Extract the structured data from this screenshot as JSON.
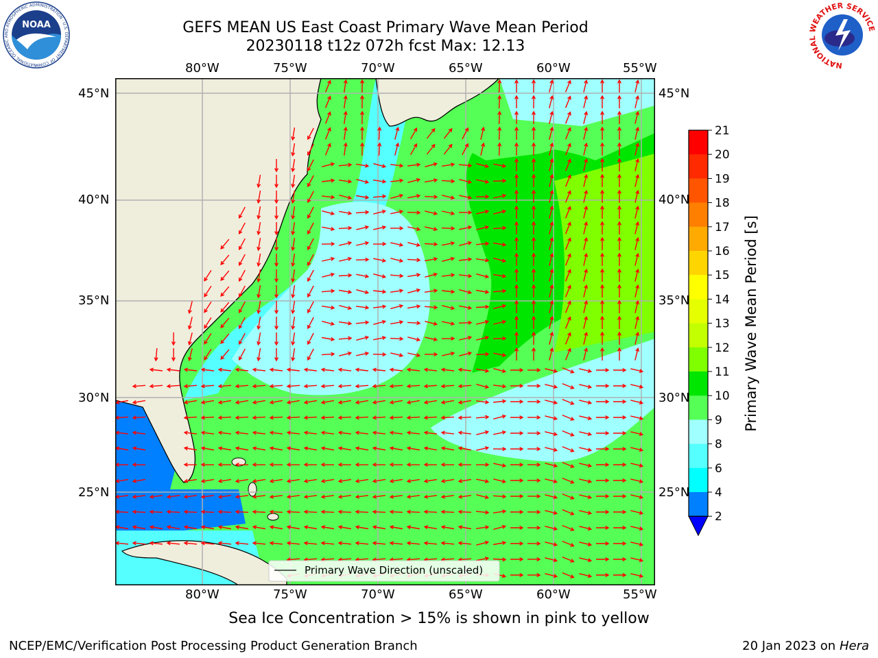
{
  "title": {
    "line1": "GEFS MEAN US East Coast Primary Wave Mean Period",
    "line2": "20230118 t12z 072h fcst   Max: 12.13"
  },
  "map": {
    "lon_labels": [
      "80°W",
      "75°W",
      "70°W",
      "65°W",
      "60°W",
      "55°W"
    ],
    "lat_labels": [
      "45°N",
      "40°N",
      "35°N",
      "30°N",
      "25°N"
    ],
    "legend_label": "Primary Wave Direction (unscaled)",
    "colors": {
      "land": "#efeddc",
      "arrow": "#ff0000",
      "grid": "#b0b0b0"
    }
  },
  "colorbar": {
    "label": "Primary Wave Mean Period [s]",
    "ticks": [
      "21",
      "20",
      "19",
      "18",
      "17",
      "16",
      "15",
      "14",
      "13",
      "12",
      "11",
      "10",
      "9",
      "8",
      "6",
      "4",
      "2"
    ],
    "colors": [
      "#ff0000",
      "#ff2a00",
      "#ff5500",
      "#ff7f00",
      "#ffaa00",
      "#ffd500",
      "#ffff00",
      "#e5ff00",
      "#c3ff00",
      "#7fff00",
      "#00e600",
      "#55ff55",
      "#a0ffff",
      "#55ffff",
      "#00ffff",
      "#0080ff",
      "#0000ff"
    ]
  },
  "logos": {
    "noaa": "NOAA",
    "noaa_ring": "NATIONAL OCEANIC AND ATMOSPHERIC ADMINISTRATION · U.S. DEPARTMENT OF COMMERCE",
    "nws_ring": "NATIONAL WEATHER SERVICE"
  },
  "footer": {
    "note": "Sea Ice Concentration > 15% is shown in pink to yellow",
    "credit": "NCEP/EMC/Verification Post Processing Product Generation Branch",
    "date": "20 Jan 2023 on ",
    "machine": "Hera"
  }
}
